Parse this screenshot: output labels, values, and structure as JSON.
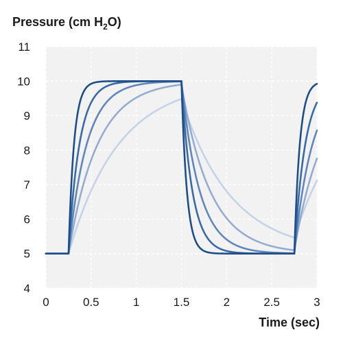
{
  "chart_data": {
    "type": "line",
    "title": "",
    "ylabel": "Pressure (cm H",
    "ylabel_sub": "2",
    "ylabel_end": "O)",
    "xlabel": "Time (sec)",
    "xlim": [
      0,
      3
    ],
    "ylim": [
      4,
      11
    ],
    "grid": true,
    "legend": "none",
    "x_ticks": [
      0,
      0.5,
      1,
      1.5,
      2,
      2.5,
      3
    ],
    "x_tick_labels": [
      "0",
      "0.5",
      "1",
      "1.5",
      "2",
      "2.5",
      "3"
    ],
    "y_ticks": [
      4,
      5,
      6,
      7,
      8,
      9,
      10,
      11
    ],
    "y_tick_labels": [
      "4",
      "5",
      "6",
      "7",
      "8",
      "9",
      "10",
      "11"
    ],
    "baseline_pressure": 5,
    "peak_pressure": 10,
    "rise_start_times": [
      0.25,
      2.75
    ],
    "fall_start_time": 1.5,
    "series": [
      {
        "color": "#1d4e89",
        "time_constant": 0.06
      },
      {
        "color": "#3a6aa6",
        "time_constant": 0.12
      },
      {
        "color": "#6087bd",
        "time_constant": 0.2
      },
      {
        "color": "#93acd2",
        "time_constant": 0.32
      },
      {
        "color": "#c4d3e8",
        "time_constant": 0.55
      }
    ],
    "colors": {
      "plot_background": "#f2f2f3",
      "grid": "#ffffff",
      "text": "#1a1a1a"
    }
  }
}
